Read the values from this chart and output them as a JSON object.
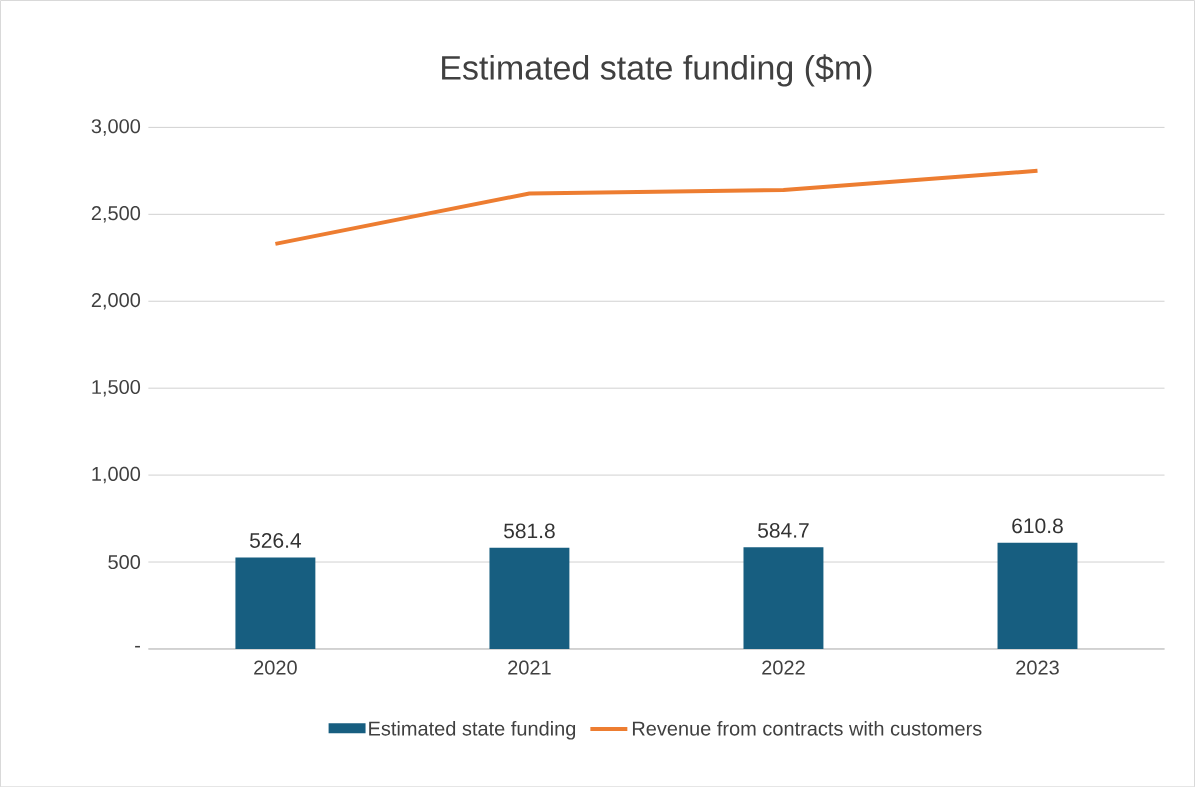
{
  "chart_data": {
    "type": "bar",
    "title": "Estimated state funding ($m)",
    "categories": [
      "2020",
      "2021",
      "2022",
      "2023"
    ],
    "series": [
      {
        "name": "Estimated state funding",
        "color": "#175e80",
        "values": [
          526.4,
          581.8,
          584.7,
          610.8
        ],
        "value_labels": [
          "526.4",
          "581.8",
          "584.7",
          "610.8"
        ]
      },
      {
        "name": "Revenue from contracts with customers",
        "type": "line",
        "color": "#ed7d31",
        "values": [
          2330,
          2620,
          2640,
          2750
        ]
      }
    ],
    "ylim": [
      0,
      3000
    ],
    "yticks": [
      {
        "value": 0,
        "label": "-"
      },
      {
        "value": 500,
        "label": "500"
      },
      {
        "value": 1000,
        "label": "1,000"
      },
      {
        "value": 1500,
        "label": "1,500"
      },
      {
        "value": 2000,
        "label": "2,000"
      },
      {
        "value": 2500,
        "label": "2,500"
      },
      {
        "value": 3000,
        "label": "3,000"
      }
    ],
    "grid": "y",
    "legend": "bottom"
  }
}
